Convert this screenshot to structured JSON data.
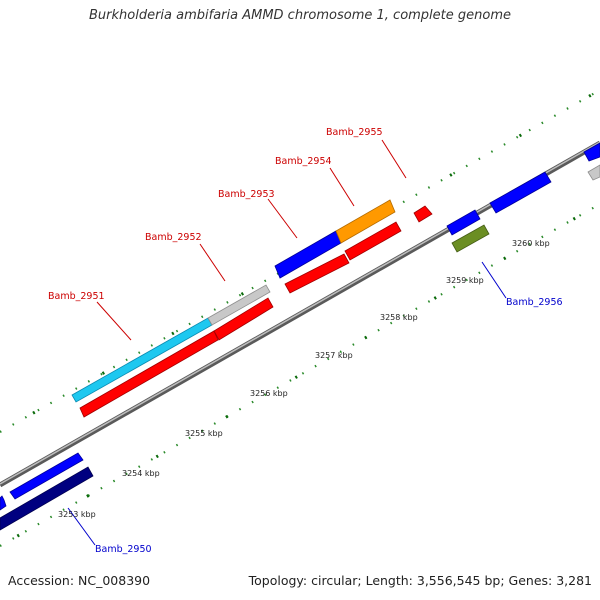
{
  "title": "Burkholderia ambifaria AMMD chromosome 1, complete genome",
  "accession": "Accession: NC_008390",
  "summary": "Topology: circular; Length: 3,556,545 bp; Genes: 3,281",
  "colors": {
    "backbone": "#8a8a8a",
    "tick": "#2a8a2a",
    "label_forward_strand": "#cc0000",
    "label_reverse_strand": "#0000cc",
    "red": "#ff0000",
    "blue": "#0000ff",
    "navy": "#000080",
    "skyblue": "#1ec8f0",
    "grey": "#c8c8c8",
    "orange": "#ff9900",
    "olive": "#6b8e23"
  },
  "kbp_labels": [
    "3253 kbp",
    "3254 kbp",
    "3255 kbp",
    "3256 kbp",
    "3257 kbp",
    "3258 kbp",
    "3259 kbp",
    "3260 kbp"
  ],
  "gene_labels": {
    "bamb_2950": "Bamb_2950",
    "bamb_2951": "Bamb_2951",
    "bamb_2952": "Bamb_2952",
    "bamb_2953": "Bamb_2953",
    "bamb_2954": "Bamb_2954",
    "bamb_2955": "Bamb_2955",
    "bamb_2956": "Bamb_2956"
  }
}
